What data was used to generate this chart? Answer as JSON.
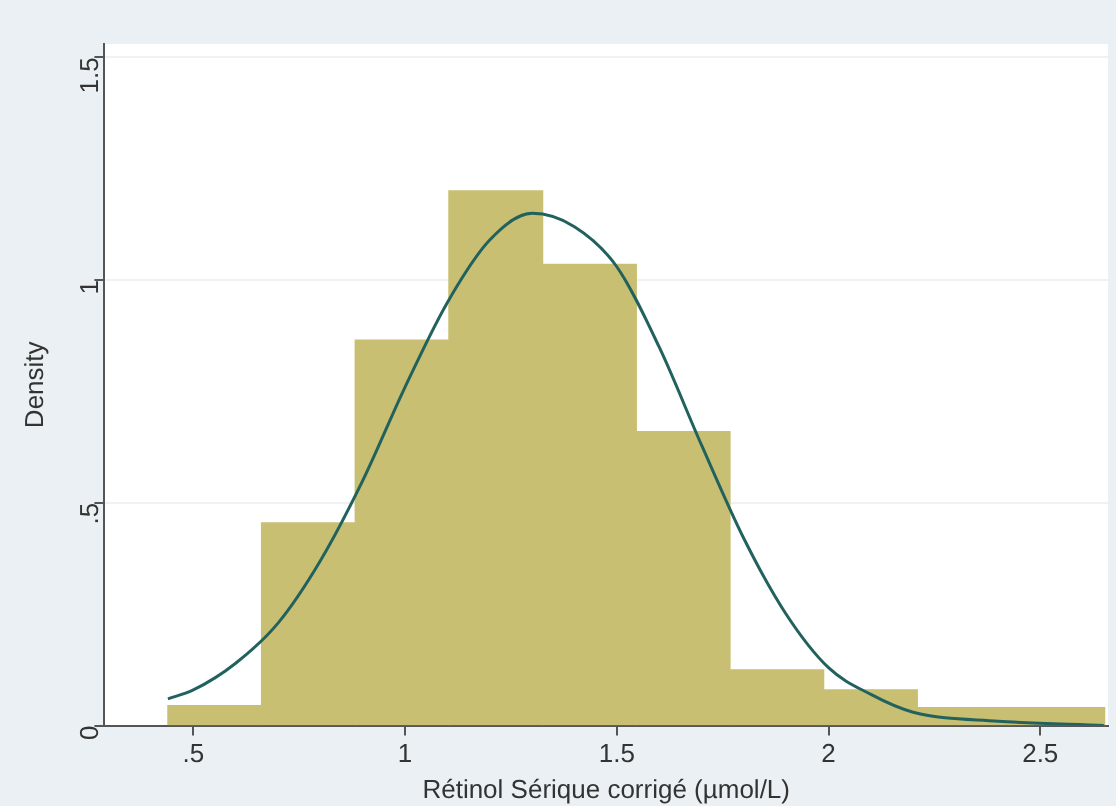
{
  "chart_data": {
    "type": "histogram",
    "xlabel": "Rétinol Sérique corrigé (µmol/L)",
    "ylabel": "Density",
    "bins": [
      0.44,
      0.6612,
      0.8824,
      1.1036,
      1.3248,
      1.546,
      1.7672,
      1.9884,
      2.2096,
      2.4308,
      2.652
    ],
    "values": [
      0.045,
      0.455,
      0.865,
      1.2,
      1.035,
      0.66,
      0.125,
      0.08,
      0.04,
      0.04
    ],
    "color": "#c9bf72",
    "series": [
      {
        "type": "line",
        "color": "#22625e",
        "x": [
          0.44,
          0.5,
          0.6,
          0.7,
          0.8,
          0.9,
          1.0,
          1.1,
          1.2,
          1.3,
          1.4,
          1.5,
          1.6,
          1.7,
          1.8,
          1.9,
          2.0,
          2.1,
          2.2,
          2.4,
          2.65
        ],
        "values": [
          0.06,
          0.08,
          0.14,
          0.23,
          0.37,
          0.55,
          0.76,
          0.95,
          1.09,
          1.15,
          1.12,
          1.03,
          0.85,
          0.63,
          0.42,
          0.25,
          0.13,
          0.07,
          0.03,
          0.01,
          0
        ]
      }
    ],
    "xlim": [
      0.29,
      2.66
    ],
    "xticks": [
      {
        "value": 0.5,
        "label": ".5"
      },
      1,
      1.5,
      2,
      2.5
    ],
    "ylim": [
      0,
      1.53
    ],
    "yticks": [
      0,
      {
        "value": 0.5,
        "label": ".5"
      },
      1,
      1.5
    ],
    "grid": "y",
    "legend": false,
    "marker": "none"
  }
}
